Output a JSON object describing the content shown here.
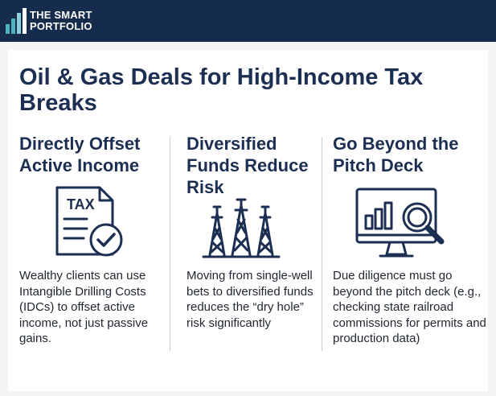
{
  "brand": {
    "line1": "THE SMART",
    "line2": "PORTFOLIO"
  },
  "title": "Oil & Gas Deals for High-Income Tax Breaks",
  "columns": [
    {
      "title": "Directly Offset Active Income",
      "icon": "tax-document-check-icon",
      "icon_text": "TAX",
      "body": "Wealthy clients can use Intangible Drilling Costs (IDCs) to offset active income, not just passive gains."
    },
    {
      "title": "Diversified Funds Reduce Risk",
      "icon": "oil-derricks-icon",
      "body": "Moving from single-well bets to diversified funds reduces the “dry hole” risk significantly"
    },
    {
      "title": "Go Beyond the Pitch Deck",
      "icon": "monitor-chart-magnifier-icon",
      "body": "Due diligence must go beyond the pitch deck (e.g., checking state railroad commissions for permits and production data)"
    }
  ],
  "colors": {
    "header_bg": "#152c4d",
    "text_dark": "#1c2f52",
    "accent_teal": "#4fb3bf"
  }
}
